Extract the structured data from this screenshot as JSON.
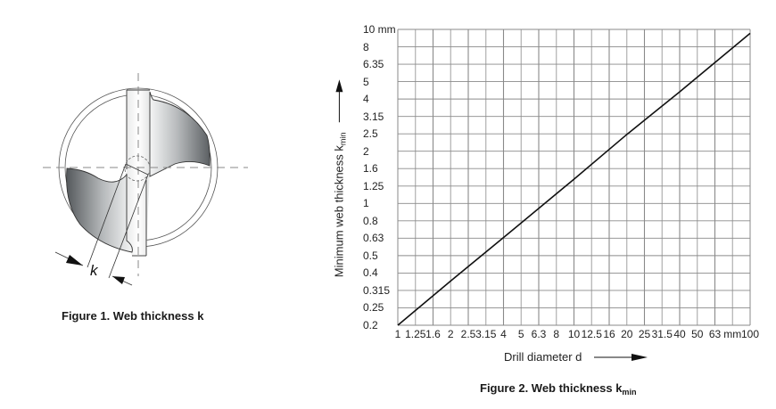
{
  "figure1": {
    "caption": "Figure 1. Web thickness k",
    "dimension_label": "k",
    "fill_colors": {
      "dark": "#5f6366",
      "light": "#f2f3f3"
    }
  },
  "figure2": {
    "caption_main": "Figure 2. Web thickness k",
    "caption_sub": "min",
    "ylabel_main": "Minimum web thickness k",
    "ylabel_sub": "min",
    "xlabel": "Drill diameter d"
  },
  "chart_data": {
    "type": "line",
    "title": "Figure 2. Web thickness kmin",
    "xlabel": "Drill diameter d",
    "ylabel": "Minimum web thickness kmin",
    "x_scale": "log",
    "y_scale": "log",
    "xlim": [
      1,
      100
    ],
    "ylim": [
      0.2,
      10
    ],
    "x_unit": "mm",
    "y_unit": "mm",
    "grid": true,
    "x_tick_labels": [
      "1",
      "1.25",
      "1.6",
      "2",
      "2.5",
      "3.15",
      "4",
      "5",
      "6.3",
      "8",
      "10",
      "12.5",
      "16",
      "20",
      "25",
      "31.5",
      "40",
      "50",
      "63",
      "mm",
      "100"
    ],
    "y_tick_labels": [
      "0.2",
      "0.25",
      "0.315",
      "0.4",
      "0.5",
      "0.63",
      "0.8",
      "1",
      "1.25",
      "1.6",
      "2",
      "2.5",
      "3.15",
      "4",
      "5",
      "6.35",
      "8",
      "10 mm"
    ],
    "series": [
      {
        "name": "kmin",
        "x": [
          1,
          2,
          4,
          10,
          20,
          40,
          100
        ],
        "values": [
          0.2,
          0.36,
          0.64,
          1.38,
          2.5,
          4.4,
          9.5
        ]
      }
    ]
  }
}
